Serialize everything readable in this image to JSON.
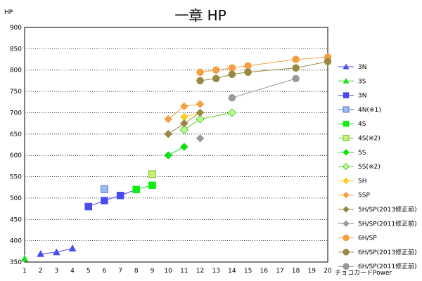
{
  "chart_data": {
    "type": "scatter",
    "title": "一章  HP",
    "ylabel": "HP",
    "xlabel": "チョコカードPower",
    "xlim": [
      1,
      20
    ],
    "ylim": [
      350,
      900
    ],
    "xticks": [
      1,
      2,
      3,
      4,
      5,
      6,
      7,
      8,
      9,
      10,
      11,
      12,
      13,
      14,
      15,
      16,
      17,
      18,
      19,
      20
    ],
    "yticks": [
      350,
      400,
      450,
      500,
      550,
      600,
      650,
      700,
      750,
      800,
      850,
      900
    ],
    "grid": "horizontal-dotted",
    "legend_position": "right",
    "series": [
      {
        "name": "3N",
        "marker": "triangle",
        "color": "#4a4af0",
        "line": true,
        "filled": true,
        "points": [
          [
            2,
            369
          ],
          [
            3,
            373
          ],
          [
            4,
            382
          ]
        ]
      },
      {
        "name": "3S",
        "marker": "triangle",
        "color": "#22dd22",
        "line": true,
        "filled": true,
        "points": [
          [
            1,
            358
          ]
        ]
      },
      {
        "name": "3N",
        "marker": "square",
        "color": "#4a4af0",
        "line": true,
        "filled": true,
        "points": [
          [
            5,
            480
          ],
          [
            6,
            494
          ],
          [
            7,
            506
          ],
          [
            8,
            520
          ]
        ]
      },
      {
        "name": "4N(※1)",
        "marker": "square",
        "color": "#99bbee",
        "line": false,
        "filled": true,
        "stroke": "#5577cc",
        "points": [
          [
            6,
            521
          ]
        ]
      },
      {
        "name": "4S",
        "marker": "square",
        "color": "#11ee11",
        "line": true,
        "filled": true,
        "points": [
          [
            8,
            520
          ],
          [
            9,
            530
          ]
        ]
      },
      {
        "name": "4S(※2)",
        "marker": "square",
        "color": "#ccee77",
        "line": false,
        "filled": true,
        "stroke": "#66cc33",
        "points": [
          [
            9,
            556
          ]
        ]
      },
      {
        "name": "5S",
        "marker": "diamond",
        "color": "#11dd11",
        "line": true,
        "filled": true,
        "points": [
          [
            10,
            600
          ],
          [
            11,
            620
          ]
        ]
      },
      {
        "name": "5S(※2)",
        "marker": "diamond",
        "color": "#bbff99",
        "line": true,
        "filled": true,
        "stroke": "#55cc22",
        "points": [
          [
            11,
            660
          ],
          [
            12,
            685
          ],
          [
            14,
            700
          ]
        ]
      },
      {
        "name": "5H",
        "marker": "diamond",
        "color": "#ffcc22",
        "line": true,
        "filled": true,
        "points": [
          [
            11,
            690
          ],
          [
            12,
            700
          ]
        ]
      },
      {
        "name": "5SP",
        "marker": "diamond",
        "color": "#f5a040",
        "line": true,
        "filled": true,
        "points": [
          [
            10,
            685
          ],
          [
            11,
            715
          ],
          [
            12,
            720
          ]
        ]
      },
      {
        "name": "5H/SP(2013修正前)",
        "marker": "diamond",
        "color": "#998844",
        "line": true,
        "filled": true,
        "points": [
          [
            10,
            650
          ],
          [
            11,
            675
          ],
          [
            12,
            700
          ]
        ]
      },
      {
        "name": "5H/SP(2011修正前)",
        "marker": "diamond",
        "color": "#999999",
        "line": true,
        "filled": true,
        "points": [
          [
            12,
            640
          ]
        ]
      },
      {
        "name": "6H/SP",
        "marker": "circle",
        "color": "#f5a040",
        "line": true,
        "filled": true,
        "points": [
          [
            12,
            795
          ],
          [
            13,
            800
          ],
          [
            14,
            805
          ],
          [
            15,
            810
          ],
          [
            18,
            825
          ],
          [
            20,
            830
          ]
        ]
      },
      {
        "name": "6H/SP(2013修正前)",
        "marker": "circle",
        "color": "#998844",
        "line": true,
        "filled": true,
        "points": [
          [
            12,
            775
          ],
          [
            13,
            780
          ],
          [
            14,
            790
          ],
          [
            15,
            795
          ],
          [
            18,
            805
          ],
          [
            20,
            820
          ]
        ]
      },
      {
        "name": "6H/SP(2011修正前)",
        "marker": "circle",
        "color": "#999999",
        "line": true,
        "filled": true,
        "points": [
          [
            14,
            735
          ],
          [
            18,
            780
          ]
        ]
      }
    ]
  }
}
